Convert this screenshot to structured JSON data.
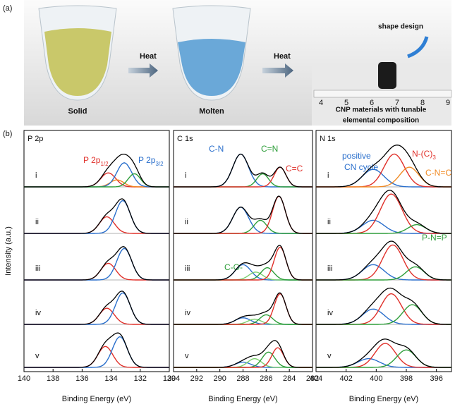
{
  "panel_a": {
    "label": "(a)",
    "heat_1": "Heat",
    "heat_2": "Heat",
    "solid": "Solid",
    "molten": "Molten",
    "result_lines": [
      "CNP materials with tunable",
      "elemental composition"
    ],
    "shape_design": "shape design",
    "ruler_labels": [
      "4",
      "5",
      "6",
      "7",
      "8",
      "9"
    ]
  },
  "panel_b": {
    "label": "(b)",
    "y_label": "Intensity (a.u.)",
    "charts": [
      {
        "type": "line",
        "title": "P 2p",
        "xlabel": "Binding Energy (eV)",
        "xlim": [
          140,
          130
        ],
        "xticks": [
          140,
          138,
          136,
          134,
          132,
          130
        ],
        "annotations": [
          {
            "text": "P 2p",
            "sub": "1/2",
            "color": "#e0302a"
          },
          {
            "text": "P 2p",
            "sub": "3/2",
            "color": "#2a6fcc"
          }
        ],
        "rows": [
          {
            "label": "i",
            "peaks": [
              {
                "color": "#e0302a",
                "center": 134.2,
                "height": 0.32,
                "width": 1.2
              },
              {
                "color": "#f08a24",
                "center": 133.6,
                "height": 0.16,
                "width": 1.1
              },
              {
                "color": "#2a6fcc",
                "center": 133.1,
                "height": 0.55,
                "width": 1.2
              },
              {
                "color": "#2e9e3a",
                "center": 132.4,
                "height": 0.3,
                "width": 1.0
              }
            ]
          },
          {
            "label": "ii",
            "peaks": [
              {
                "color": "#e0302a",
                "center": 134.3,
                "height": 0.38,
                "width": 1.2
              },
              {
                "color": "#2a6fcc",
                "center": 133.2,
                "height": 0.75,
                "width": 1.2
              }
            ]
          },
          {
            "label": "iii",
            "peaks": [
              {
                "color": "#e0302a",
                "center": 134.2,
                "height": 0.38,
                "width": 1.2
              },
              {
                "color": "#2a6fcc",
                "center": 133.1,
                "height": 0.72,
                "width": 1.2
              }
            ]
          },
          {
            "label": "iv",
            "peaks": [
              {
                "color": "#e0302a",
                "center": 134.3,
                "height": 0.37,
                "width": 1.2
              },
              {
                "color": "#2a6fcc",
                "center": 133.2,
                "height": 0.72,
                "width": 1.2
              }
            ]
          },
          {
            "label": "v",
            "peaks": [
              {
                "color": "#e0302a",
                "center": 134.4,
                "height": 0.48,
                "width": 1.2
              },
              {
                "color": "#2a6fcc",
                "center": 133.4,
                "height": 0.7,
                "width": 1.2
              }
            ]
          }
        ]
      },
      {
        "type": "line",
        "title": "C 1s",
        "xlabel": "Binding Energy (eV)",
        "xlim": [
          294,
          282
        ],
        "xticks": [
          294,
          292,
          290,
          288,
          286,
          284,
          282
        ],
        "annotations": [
          {
            "text": "C-N",
            "color": "#2a6fcc"
          },
          {
            "text": "C=N",
            "color": "#2e9e3a"
          },
          {
            "text": "C=C",
            "color": "#e0302a"
          },
          {
            "text": "C-O-",
            "color": "#2e9e3a"
          }
        ],
        "rows": [
          {
            "label": "i",
            "peaks": [
              {
                "color": "#2a6fcc",
                "center": 288.2,
                "height": 0.75,
                "width": 1.6
              },
              {
                "color": "#2e9e3a",
                "center": 286.3,
                "height": 0.3,
                "width": 1.2
              },
              {
                "color": "#e0302a",
                "center": 284.8,
                "height": 0.45,
                "width": 1.2
              }
            ]
          },
          {
            "label": "ii",
            "peaks": [
              {
                "color": "#2a6fcc",
                "center": 288.2,
                "height": 0.6,
                "width": 1.6
              },
              {
                "color": "#2e9e3a",
                "center": 286.5,
                "height": 0.3,
                "width": 1.3
              },
              {
                "color": "#e0302a",
                "center": 284.9,
                "height": 0.85,
                "width": 1.3
              }
            ]
          },
          {
            "label": "iii",
            "peaks": [
              {
                "color": "#2a6fcc",
                "center": 288.0,
                "height": 0.35,
                "width": 1.6
              },
              {
                "color": "#7ccf6f",
                "center": 286.9,
                "height": 0.18,
                "width": 1.4
              },
              {
                "color": "#2e9e3a",
                "center": 285.9,
                "height": 0.28,
                "width": 1.3
              },
              {
                "color": "#e0302a",
                "center": 284.8,
                "height": 0.75,
                "width": 1.2
              }
            ]
          },
          {
            "label": "iv",
            "peaks": [
              {
                "color": "#2a6fcc",
                "center": 288.0,
                "height": 0.15,
                "width": 1.6
              },
              {
                "color": "#7ccf6f",
                "center": 287.0,
                "height": 0.12,
                "width": 1.4
              },
              {
                "color": "#2e9e3a",
                "center": 286.0,
                "height": 0.22,
                "width": 1.3
              },
              {
                "color": "#e0302a",
                "center": 284.8,
                "height": 0.7,
                "width": 1.2
              }
            ]
          },
          {
            "label": "v",
            "peaks": [
              {
                "color": "#2a6fcc",
                "center": 288.0,
                "height": 0.12,
                "width": 1.6
              },
              {
                "color": "#7ccf6f",
                "center": 287.0,
                "height": 0.2,
                "width": 1.4
              },
              {
                "color": "#2e9e3a",
                "center": 285.8,
                "height": 0.35,
                "width": 1.3
              },
              {
                "color": "#e0302a",
                "center": 285.0,
                "height": 0.45,
                "width": 1.2
              }
            ]
          }
        ]
      },
      {
        "type": "line",
        "title": "N 1s",
        "xlabel": "Binding Energy (eV)",
        "xlim": [
          404,
          395
        ],
        "xticks": [
          404,
          402,
          400,
          398,
          396
        ],
        "annotations": [
          {
            "text": "positive",
            "color": "#2a6fcc"
          },
          {
            "text": "CN cycle",
            "color": "#2a6fcc"
          },
          {
            "text": "N-(C)",
            "sub": "3",
            "color": "#e0302a"
          },
          {
            "text": "C-N=C",
            "color": "#f08a24"
          },
          {
            "text": "P-N=P",
            "color": "#2e9e3a"
          }
        ],
        "rows": [
          {
            "label": "i",
            "peaks": [
              {
                "color": "#2a6fcc",
                "center": 400.2,
                "height": 0.4,
                "width": 1.7
              },
              {
                "color": "#e0302a",
                "center": 398.8,
                "height": 0.75,
                "width": 1.6
              },
              {
                "color": "#f08a24",
                "center": 397.8,
                "height": 0.45,
                "width": 1.5
              }
            ]
          },
          {
            "label": "ii",
            "peaks": [
              {
                "color": "#2a6fcc",
                "center": 400.2,
                "height": 0.3,
                "width": 1.7
              },
              {
                "color": "#e0302a",
                "center": 399.0,
                "height": 0.9,
                "width": 1.7
              },
              {
                "color": "#2e9e3a",
                "center": 397.3,
                "height": 0.2,
                "width": 1.4
              }
            ]
          },
          {
            "label": "iii",
            "peaks": [
              {
                "color": "#2a6fcc",
                "center": 400.2,
                "height": 0.35,
                "width": 1.7
              },
              {
                "color": "#e0302a",
                "center": 398.9,
                "height": 0.8,
                "width": 1.6
              },
              {
                "color": "#2e9e3a",
                "center": 397.4,
                "height": 0.3,
                "width": 1.4
              }
            ]
          },
          {
            "label": "iv",
            "peaks": [
              {
                "color": "#2a6fcc",
                "center": 400.2,
                "height": 0.35,
                "width": 1.7
              },
              {
                "color": "#e0302a",
                "center": 399.0,
                "height": 0.7,
                "width": 1.6
              },
              {
                "color": "#2e9e3a",
                "center": 397.6,
                "height": 0.45,
                "width": 1.5
              }
            ]
          },
          {
            "label": "v",
            "peaks": [
              {
                "color": "#2a6fcc",
                "center": 400.5,
                "height": 0.2,
                "width": 1.7
              },
              {
                "color": "#e0302a",
                "center": 399.4,
                "height": 0.55,
                "width": 1.6
              },
              {
                "color": "#2e9e3a",
                "center": 398.0,
                "height": 0.4,
                "width": 1.5
              }
            ]
          }
        ]
      }
    ]
  }
}
